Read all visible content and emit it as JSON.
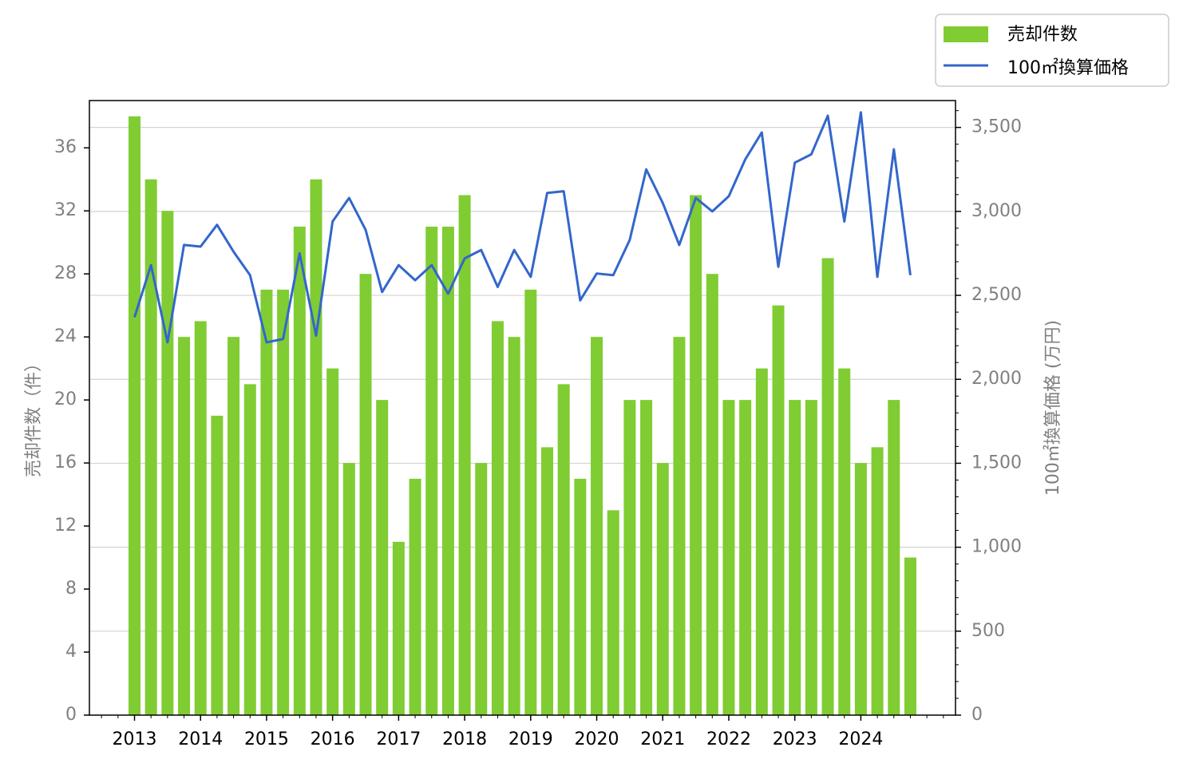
{
  "chart_data": {
    "type": "bar",
    "x_tick_labels": [
      "2013",
      "2014",
      "2015",
      "2016",
      "2017",
      "2018",
      "2019",
      "2020",
      "2021",
      "2022",
      "2023",
      "2024"
    ],
    "left_axis": {
      "label": "売却件数（件）",
      "ylim": [
        0,
        39
      ],
      "ticks": [
        0,
        4,
        8,
        12,
        16,
        20,
        24,
        28,
        32,
        36
      ],
      "tick_labels": [
        "0",
        "4",
        "8",
        "12",
        "16",
        "20",
        "24",
        "28",
        "32",
        "36"
      ]
    },
    "right_axis": {
      "label": "100㎡換算価格 (万円)",
      "ylim": [
        0,
        3660
      ],
      "ticks": [
        0,
        500,
        1000,
        1500,
        2000,
        2500,
        3000,
        3500
      ],
      "tick_labels": [
        "0",
        "500",
        "1,000",
        "1,500",
        "2,000",
        "2,500",
        "3,000",
        "3,500"
      ]
    },
    "grid": "horizontal, right axis",
    "legend_position": "top-right",
    "series": [
      {
        "name": "売却件数",
        "type": "bar",
        "axis": "left",
        "color": "#80cc33",
        "quarters_start": "2013 Q1",
        "values": [
          38,
          34,
          32,
          24,
          25,
          19,
          24,
          21,
          27,
          27,
          31,
          34,
          22,
          16,
          28,
          20,
          11,
          15,
          31,
          31,
          33,
          16,
          25,
          24,
          27,
          17,
          21,
          15,
          24,
          13,
          20,
          20,
          16,
          24,
          33,
          28,
          20,
          20,
          22,
          26,
          20,
          20,
          29,
          22,
          16,
          17,
          20,
          10
        ]
      },
      {
        "name": "100㎡換算価格",
        "type": "line",
        "axis": "right",
        "color": "#3366cc",
        "quarters_start": "2013 Q1",
        "values": [
          2370,
          2680,
          2220,
          2800,
          2790,
          2920,
          2760,
          2620,
          2220,
          2240,
          2750,
          2260,
          2940,
          3080,
          2890,
          2520,
          2680,
          2590,
          2680,
          2510,
          2720,
          2770,
          2550,
          2770,
          2610,
          3110,
          3120,
          2470,
          2630,
          2620,
          2830,
          3250,
          3050,
          2800,
          3080,
          3000,
          3090,
          3310,
          3470,
          2670,
          3290,
          3340,
          3570,
          2940,
          3590,
          2610,
          3370,
          2620
        ]
      }
    ]
  }
}
